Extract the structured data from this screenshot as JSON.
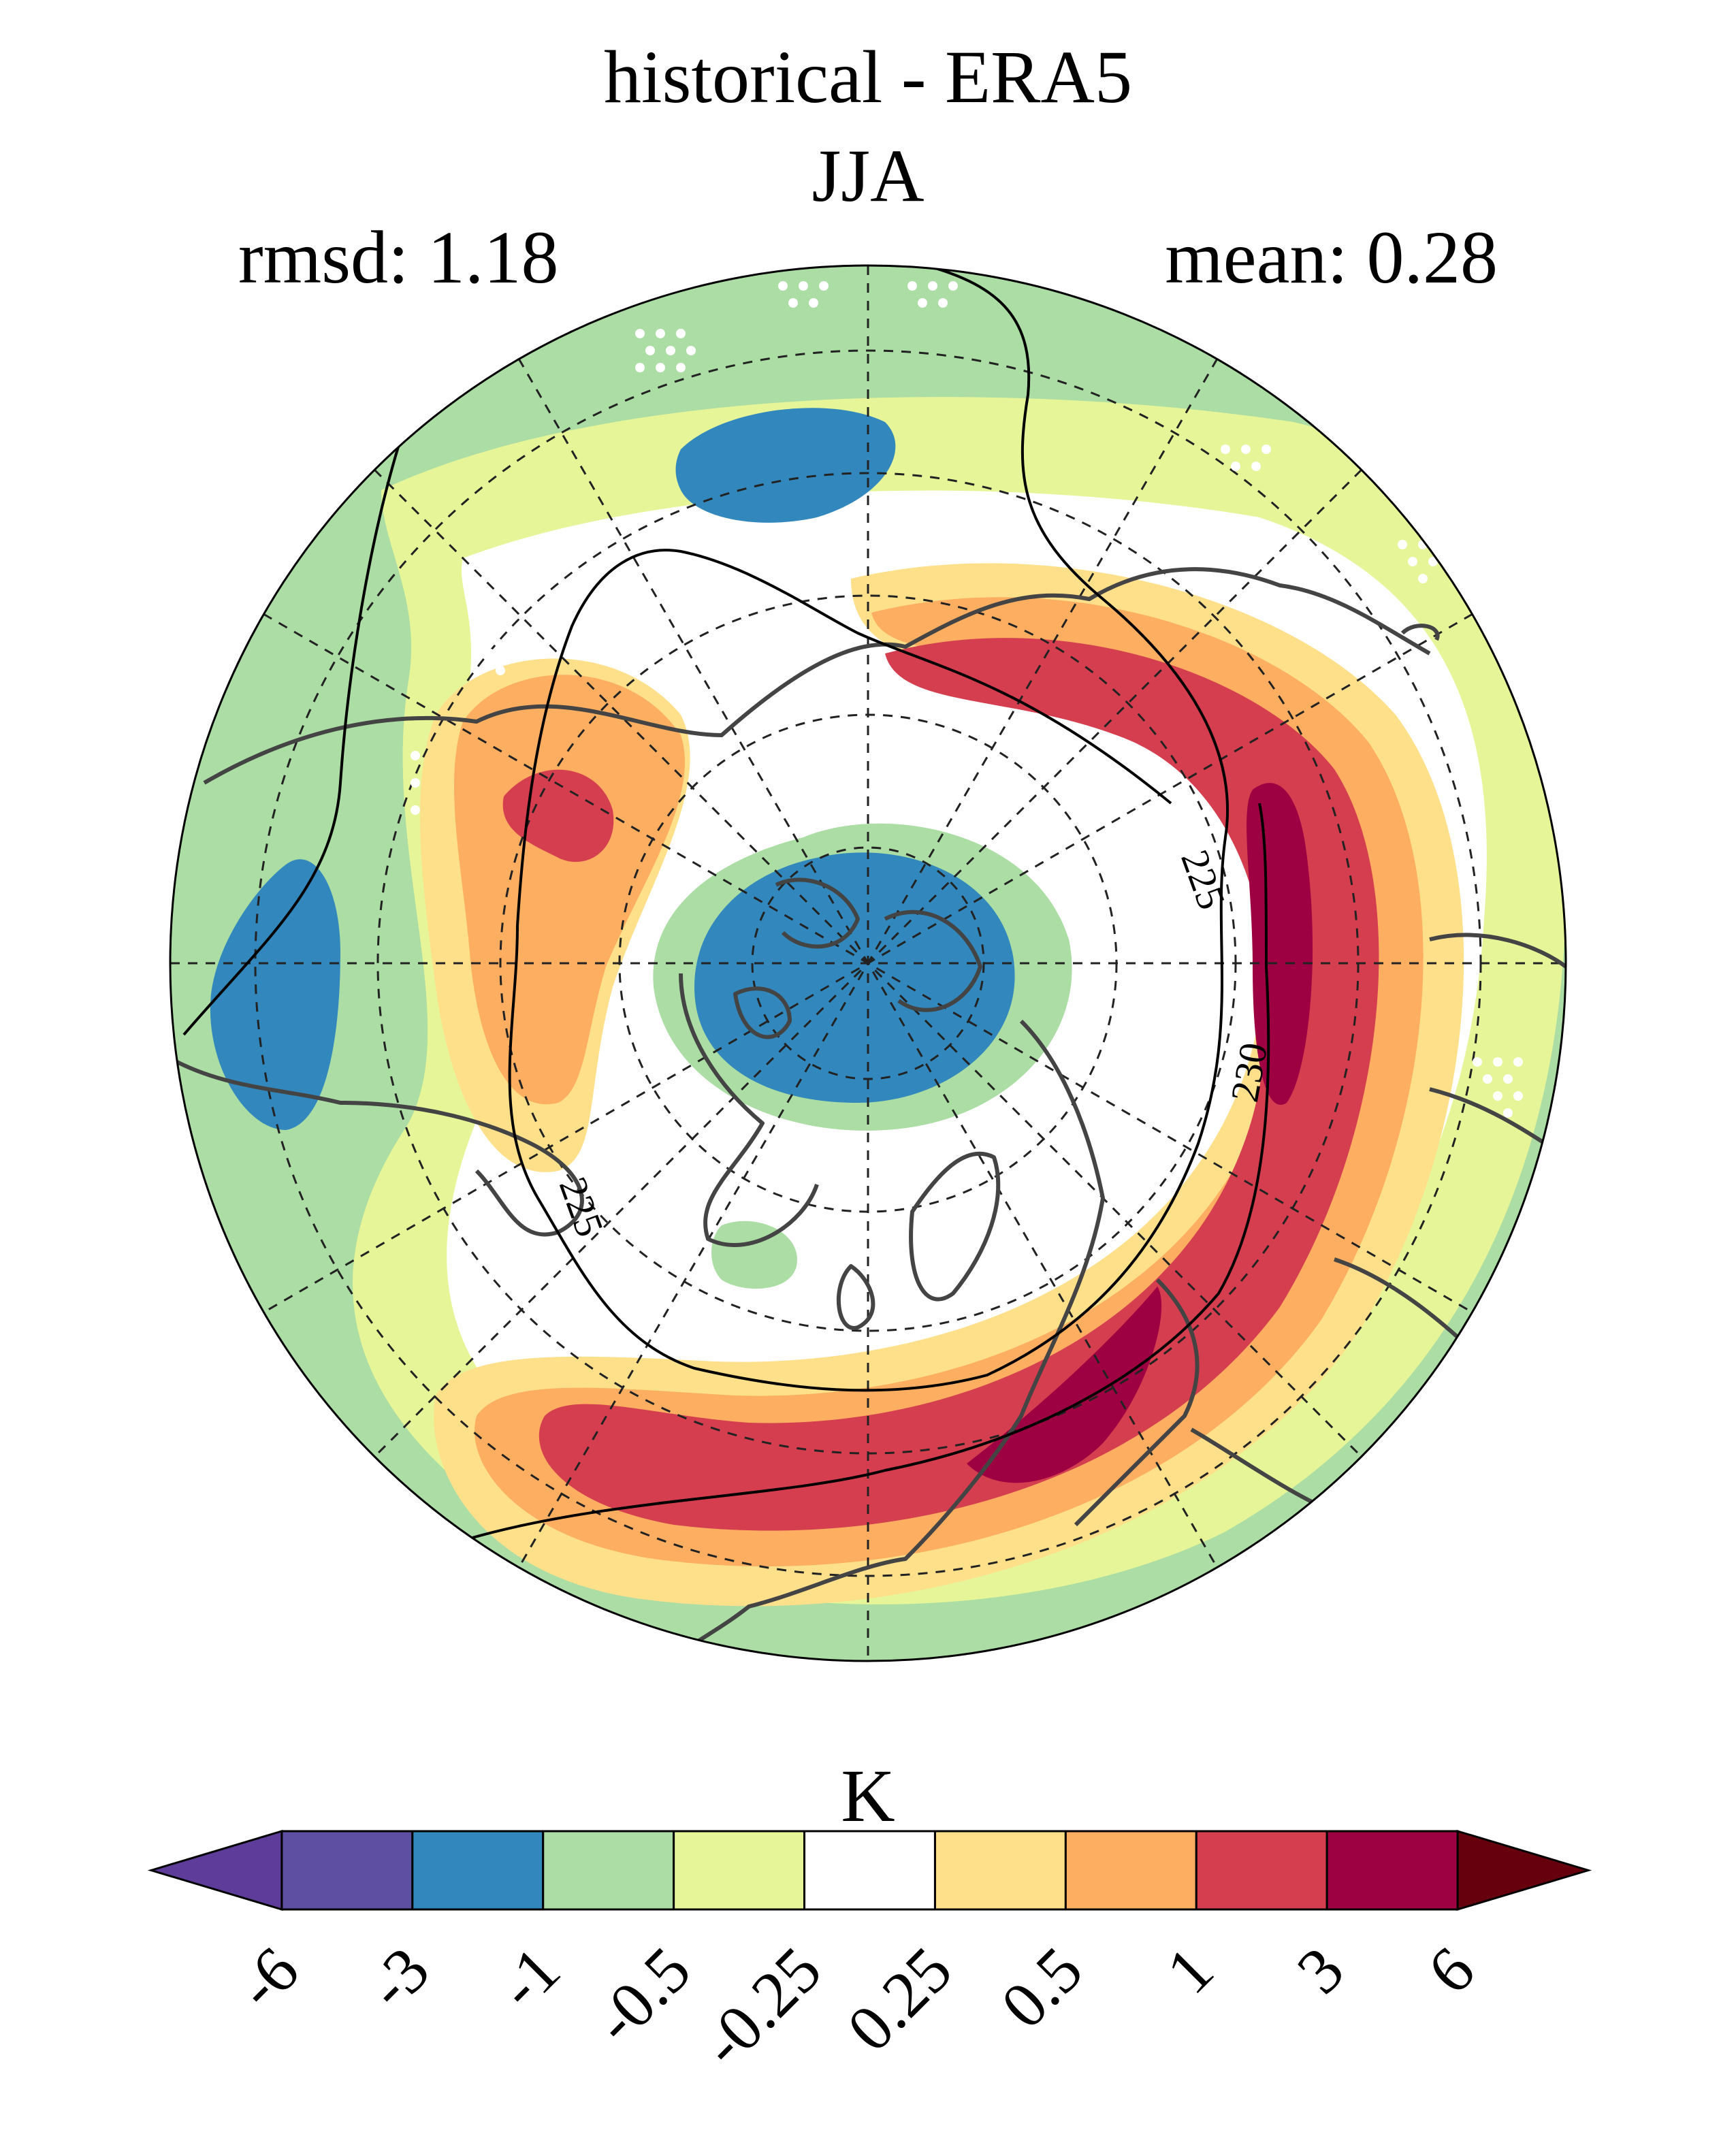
{
  "title": "historical - ERA5",
  "season": "JJA",
  "stats": {
    "rmsd": "rmsd: 1.18",
    "mean": "mean: 0.28"
  },
  "colorbar": {
    "units": "K",
    "tick_labels": [
      "-6",
      "-3",
      "-1",
      "-0.5",
      "-0.25",
      "0.25",
      "0.5",
      "1",
      "3",
      "6"
    ],
    "colors": [
      "#5e3c99",
      "#5e4fa2",
      "#3288bd",
      "#abdda4",
      "#e6f598",
      "#ffffff",
      "#fee08b",
      "#fdae61",
      "#d53e4f",
      "#9e0142",
      "#67000d"
    ]
  },
  "contour_labels": [
    "225",
    "225",
    "230"
  ],
  "map": {
    "projection": "north-polar-stereographic",
    "palette": {
      "dark_blue": "#3288bd",
      "light_green": "#abdda4",
      "yellow_green": "#e6f598",
      "neutral": "#ffffff",
      "light_orange": "#fee08b",
      "orange": "#fdae61",
      "red": "#d53e4f",
      "dark_red": "#9e0142",
      "coast": "#444444"
    }
  }
}
